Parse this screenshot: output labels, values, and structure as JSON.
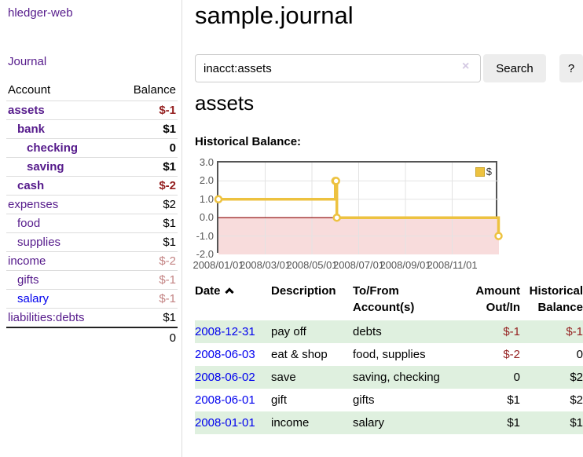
{
  "colors": {
    "link_purple": "#551a8b",
    "link_blue": "#0000ee",
    "negative_red": "#941f1f",
    "faded_negative": "#c38383",
    "row_green": "#dff0df",
    "chart_gold": "#edc240",
    "chart_negative_fill": "#f8dcdc",
    "chart_zero_line": "#8b0000"
  },
  "sidebar": {
    "app_title": "hledger-web",
    "journal_link": "Journal",
    "accounts": {
      "header_account": "Account",
      "header_balance": "Balance",
      "rows": [
        {
          "name": "assets",
          "balance": "$-1",
          "indent": 1,
          "bold": true,
          "balance_class": "neg"
        },
        {
          "name": "bank",
          "balance": "$1",
          "indent": 2,
          "bold": true,
          "balance_class": ""
        },
        {
          "name": "checking",
          "balance": "0",
          "indent": 3,
          "bold": true,
          "balance_class": ""
        },
        {
          "name": "saving",
          "balance": "$1",
          "indent": 3,
          "bold": true,
          "balance_class": ""
        },
        {
          "name": "cash",
          "balance": "$-2",
          "indent": 2,
          "bold": true,
          "balance_class": "neg"
        },
        {
          "name": "expenses",
          "balance": "$2",
          "indent": 1,
          "bold": false,
          "balance_class": ""
        },
        {
          "name": "food",
          "balance": "$1",
          "indent": 2,
          "bold": false,
          "balance_class": ""
        },
        {
          "name": "supplies",
          "balance": "$1",
          "indent": 2,
          "bold": false,
          "balance_class": ""
        },
        {
          "name": "income",
          "balance": "$-2",
          "indent": 1,
          "bold": false,
          "balance_class": "faded"
        },
        {
          "name": "gifts",
          "balance": "$-1",
          "indent": 2,
          "bold": false,
          "balance_class": "faded"
        },
        {
          "name": "salary",
          "balance": "$-1",
          "indent": 2,
          "bold": false,
          "balance_class": "faded",
          "link_color": "blue"
        },
        {
          "name": "liabilities:debts",
          "balance": "$1",
          "indent": 1,
          "bold": false,
          "balance_class": ""
        }
      ],
      "total": "0"
    }
  },
  "main": {
    "title": "sample.journal",
    "search": {
      "value": "inacct:assets",
      "clear_icon": "×",
      "search_label": "Search",
      "help_label": "?"
    },
    "account_heading": "assets",
    "chart_heading": "Historical Balance:",
    "register": {
      "headers": {
        "date": "Date",
        "description": "Description",
        "accounts": "To/From Account(s)",
        "amount": "Amount Out/In",
        "balance": "Historical Balance"
      },
      "rows": [
        {
          "date": "2008-12-31",
          "description": "pay off",
          "accounts": "debts",
          "amount": "$-1",
          "amount_negative": true,
          "balance": "$-1",
          "balance_negative": true
        },
        {
          "date": "2008-06-03",
          "description": "eat & shop",
          "accounts": "food, supplies",
          "amount": "$-2",
          "amount_negative": true,
          "balance": "0",
          "balance_negative": false
        },
        {
          "date": "2008-06-02",
          "description": "save",
          "accounts": "saving, checking",
          "amount": "0",
          "amount_negative": false,
          "balance": "$2",
          "balance_negative": false
        },
        {
          "date": "2008-06-01",
          "description": "gift",
          "accounts": "gifts",
          "amount": "$1",
          "amount_negative": false,
          "balance": "$2",
          "balance_negative": false
        },
        {
          "date": "2008-01-01",
          "description": "income",
          "accounts": "salary",
          "amount": "$1",
          "amount_negative": false,
          "balance": "$1",
          "balance_negative": false
        }
      ]
    }
  },
  "chart_data": {
    "type": "line",
    "step": true,
    "title": "Historical Balance",
    "series": [
      {
        "name": "$",
        "color": "#edc240",
        "points": [
          [
            "2008-01-01",
            1
          ],
          [
            "2008-06-01",
            2
          ],
          [
            "2008-06-02",
            2
          ],
          [
            "2008-06-03",
            0
          ],
          [
            "2008-12-31",
            -1
          ]
        ]
      }
    ],
    "ylim": [
      -2,
      3
    ],
    "yticks": [
      {
        "label": "3.0",
        "value": 3
      },
      {
        "label": "2.0",
        "value": 2
      },
      {
        "label": "1.0",
        "value": 1
      },
      {
        "label": "0.0",
        "value": 0
      },
      {
        "label": "-1.0",
        "value": -1
      },
      {
        "label": "-2.0",
        "value": -2
      }
    ],
    "xticks": [
      {
        "label": "2008/01/01",
        "month": 0
      },
      {
        "label": "2008/03/01",
        "month": 2
      },
      {
        "label": "2008/05/01",
        "month": 4
      },
      {
        "label": "2008/07/01",
        "month": 6
      },
      {
        "label": "2008/09/01",
        "month": 8
      },
      {
        "label": "2008/11/01",
        "month": 10
      }
    ],
    "x_range_months": [
      0,
      12
    ],
    "grid_vertical_months": [
      2,
      4,
      6,
      8,
      10
    ],
    "grid_horizontal_values": [
      2,
      1,
      -1
    ],
    "legend_position": "top-right",
    "negative_region_below": 0
  }
}
